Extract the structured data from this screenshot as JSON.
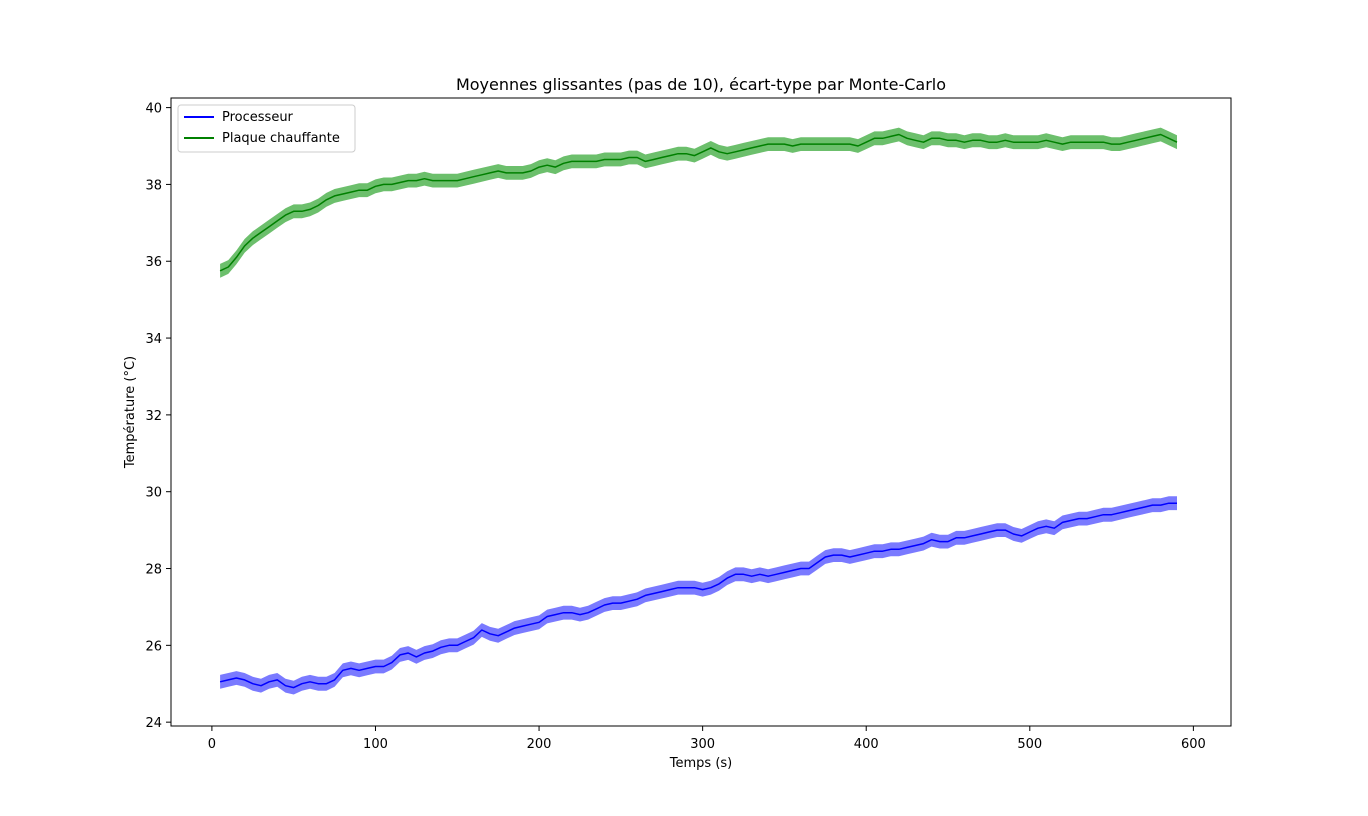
{
  "chart_data": {
    "type": "line",
    "title": "Moyennes glissantes (pas de 10), écart-type par Monte-Carlo",
    "xlabel": "Temps (s)",
    "ylabel": "Température (°C)",
    "xlim": [
      -25,
      623
    ],
    "ylim": [
      23.9,
      40.25
    ],
    "xticks": [
      0,
      100,
      200,
      300,
      400,
      500,
      600
    ],
    "yticks": [
      24,
      26,
      28,
      30,
      32,
      34,
      36,
      38,
      40
    ],
    "grid": false,
    "legend_position": "top-left",
    "x": [
      5,
      10,
      15,
      20,
      25,
      30,
      35,
      40,
      45,
      50,
      55,
      60,
      65,
      70,
      75,
      80,
      85,
      90,
      95,
      100,
      105,
      110,
      115,
      120,
      125,
      130,
      135,
      140,
      145,
      150,
      155,
      160,
      165,
      170,
      175,
      180,
      185,
      190,
      195,
      200,
      205,
      210,
      215,
      220,
      225,
      230,
      235,
      240,
      245,
      250,
      255,
      260,
      265,
      270,
      275,
      280,
      285,
      290,
      295,
      300,
      305,
      310,
      315,
      320,
      325,
      330,
      335,
      340,
      345,
      350,
      355,
      360,
      365,
      370,
      375,
      380,
      385,
      390,
      395,
      400,
      405,
      410,
      415,
      420,
      425,
      430,
      435,
      440,
      445,
      450,
      455,
      460,
      465,
      470,
      475,
      480,
      485,
      490,
      495,
      500,
      505,
      510,
      515,
      520,
      525,
      530,
      535,
      540,
      545,
      550,
      555,
      560,
      565,
      570,
      575,
      580,
      585,
      590
    ],
    "series": [
      {
        "name": "Processeur",
        "color": "#0000ff",
        "band_color": "#7a7aff",
        "band_halfwidth": 0.18,
        "values": [
          25.05,
          25.1,
          25.15,
          25.1,
          25.0,
          24.95,
          25.05,
          25.1,
          24.95,
          24.9,
          25.0,
          25.05,
          25.0,
          25.0,
          25.1,
          25.35,
          25.4,
          25.35,
          25.4,
          25.45,
          25.45,
          25.55,
          25.75,
          25.8,
          25.7,
          25.8,
          25.85,
          25.95,
          26.0,
          26.0,
          26.1,
          26.2,
          26.4,
          26.3,
          26.25,
          26.35,
          26.45,
          26.5,
          26.55,
          26.6,
          26.75,
          26.8,
          26.85,
          26.85,
          26.8,
          26.85,
          26.95,
          27.05,
          27.1,
          27.1,
          27.15,
          27.2,
          27.3,
          27.35,
          27.4,
          27.45,
          27.5,
          27.5,
          27.5,
          27.45,
          27.5,
          27.6,
          27.75,
          27.85,
          27.85,
          27.8,
          27.85,
          27.8,
          27.85,
          27.9,
          27.95,
          28.0,
          28.0,
          28.15,
          28.3,
          28.35,
          28.35,
          28.3,
          28.35,
          28.4,
          28.45,
          28.45,
          28.5,
          28.5,
          28.55,
          28.6,
          28.65,
          28.75,
          28.7,
          28.7,
          28.8,
          28.8,
          28.85,
          28.9,
          28.95,
          29.0,
          29.0,
          28.9,
          28.85,
          28.95,
          29.05,
          29.1,
          29.05,
          29.2,
          29.25,
          29.3,
          29.3,
          29.35,
          29.4,
          29.4,
          29.45,
          29.5,
          29.55,
          29.6,
          29.65,
          29.65,
          29.7,
          29.7
        ]
      },
      {
        "name": "Plaque chauffante",
        "color": "#008000",
        "band_color": "#6cbf6c",
        "band_halfwidth": 0.18,
        "values": [
          35.75,
          35.85,
          36.1,
          36.4,
          36.6,
          36.75,
          36.9,
          37.05,
          37.2,
          37.3,
          37.3,
          37.35,
          37.45,
          37.6,
          37.7,
          37.75,
          37.8,
          37.85,
          37.85,
          37.95,
          38.0,
          38.0,
          38.05,
          38.1,
          38.1,
          38.15,
          38.1,
          38.1,
          38.1,
          38.1,
          38.15,
          38.2,
          38.25,
          38.3,
          38.35,
          38.3,
          38.3,
          38.3,
          38.35,
          38.45,
          38.5,
          38.45,
          38.55,
          38.6,
          38.6,
          38.6,
          38.6,
          38.65,
          38.65,
          38.65,
          38.7,
          38.7,
          38.6,
          38.65,
          38.7,
          38.75,
          38.8,
          38.8,
          38.75,
          38.85,
          38.95,
          38.85,
          38.8,
          38.85,
          38.9,
          38.95,
          39.0,
          39.05,
          39.05,
          39.05,
          39.0,
          39.05,
          39.05,
          39.05,
          39.05,
          39.05,
          39.05,
          39.05,
          39.0,
          39.1,
          39.2,
          39.2,
          39.25,
          39.3,
          39.2,
          39.15,
          39.1,
          39.2,
          39.2,
          39.15,
          39.15,
          39.1,
          39.15,
          39.15,
          39.1,
          39.1,
          39.15,
          39.1,
          39.1,
          39.1,
          39.1,
          39.15,
          39.1,
          39.05,
          39.1,
          39.1,
          39.1,
          39.1,
          39.1,
          39.05,
          39.05,
          39.1,
          39.15,
          39.2,
          39.25,
          39.3,
          39.2,
          39.1
        ]
      }
    ]
  }
}
